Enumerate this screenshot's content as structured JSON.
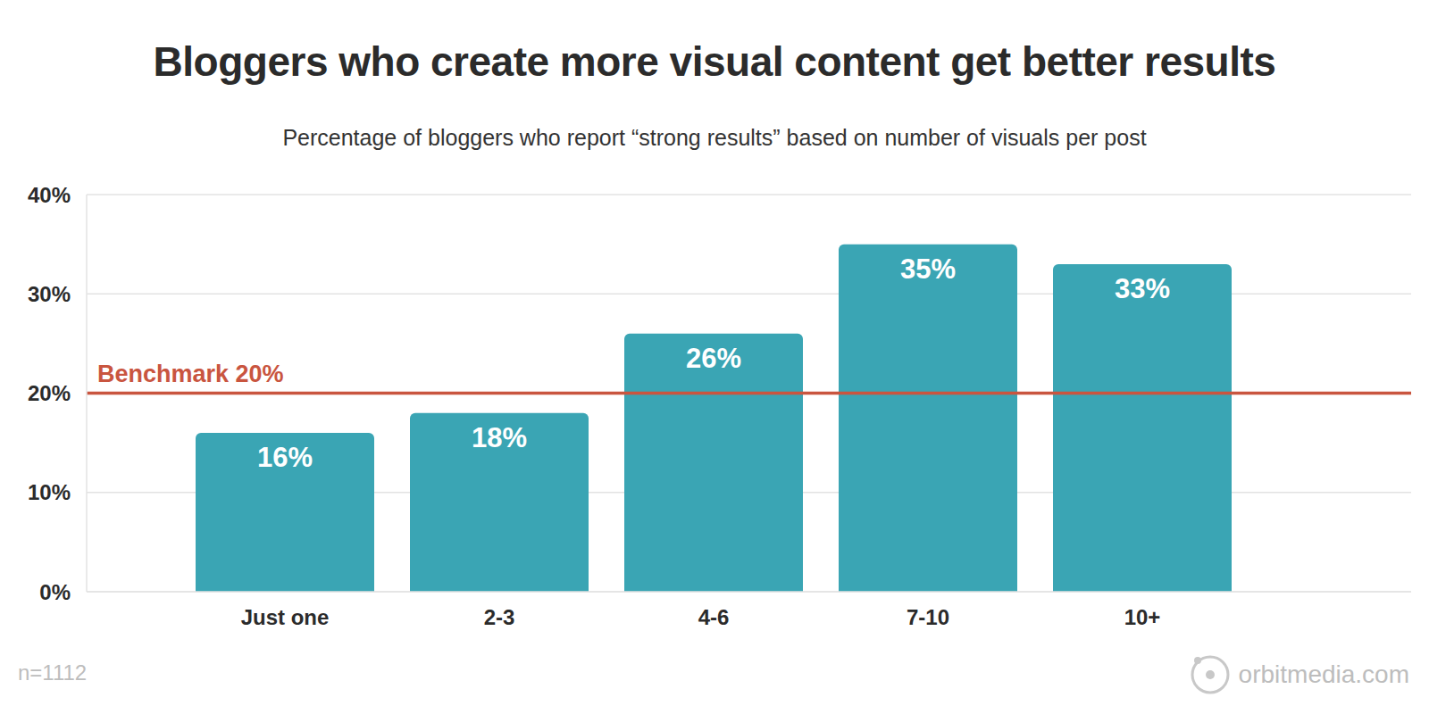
{
  "chart_data": {
    "type": "bar",
    "title": "Bloggers who create more visual content get better results",
    "subtitle": "Percentage of bloggers who report “strong results” based on number of visuals per post",
    "categories": [
      "Just one",
      "2-3",
      "4-6",
      "7-10",
      "10+"
    ],
    "values": [
      16,
      18,
      26,
      35,
      33
    ],
    "value_labels": [
      "16%",
      "18%",
      "26%",
      "35%",
      "33%"
    ],
    "data_labels": true,
    "color": "#3aa5b4",
    "ylim": [
      0,
      40
    ],
    "yticks": [
      {
        "value": 0,
        "label": "0%"
      },
      {
        "value": 10,
        "label": "10%"
      },
      {
        "value": 20,
        "label": "20%"
      },
      {
        "value": 30,
        "label": "30%"
      },
      {
        "value": 40,
        "label": "40%"
      }
    ],
    "grid": true,
    "reference_line": {
      "value": 20,
      "label": "Benchmark 20%",
      "color": "#c9553f"
    },
    "footnote": "n=1112",
    "source": "orbitmedia.com"
  }
}
